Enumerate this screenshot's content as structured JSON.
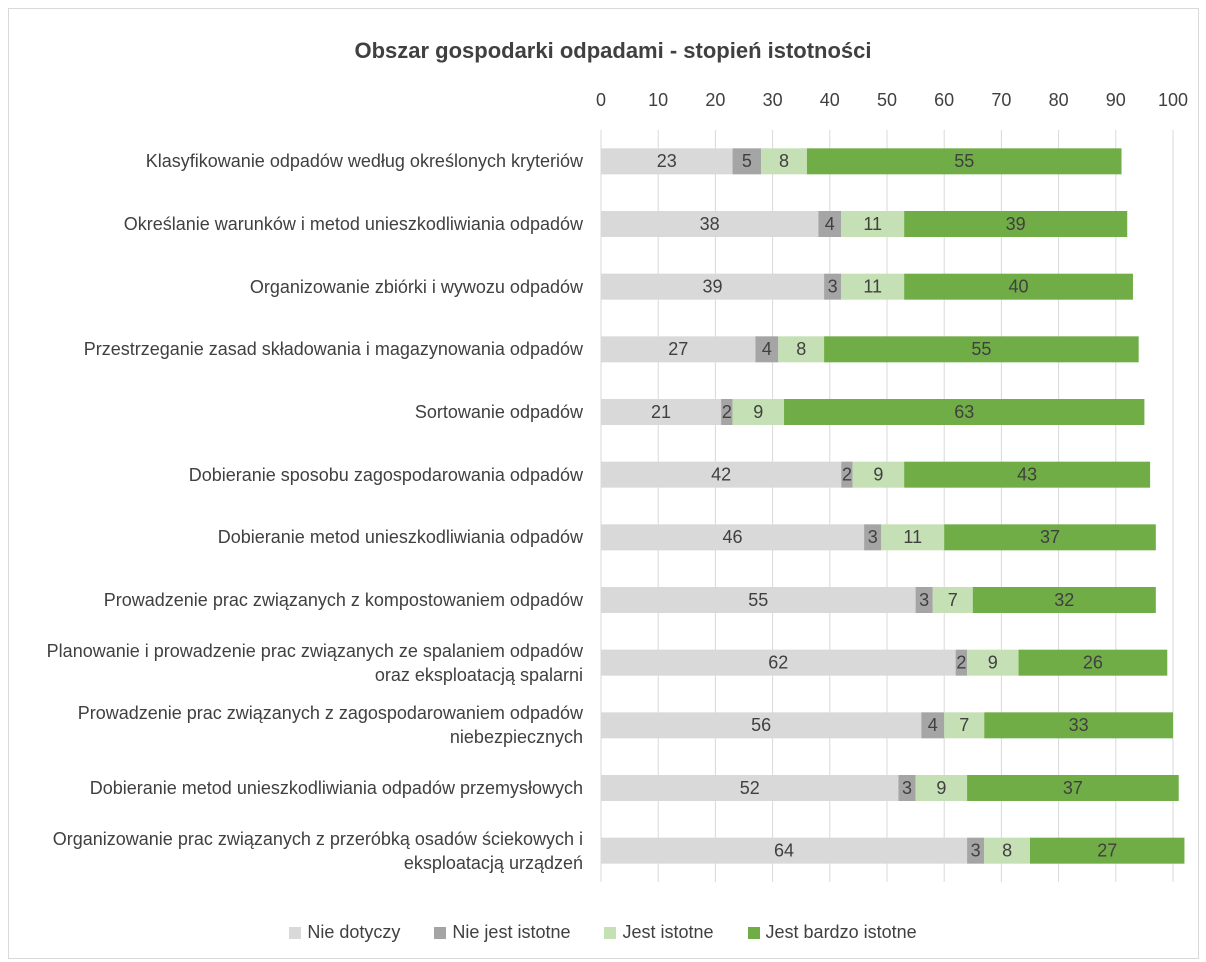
{
  "chart_data": {
    "type": "stacked-bar-horizontal",
    "title": "Obszar gospodarki odpadami - stopień istotności",
    "categories": [
      "Klasyfikowanie odpadów według określonych kryteriów",
      "Określanie warunków i metod unieszkodliwiania odpadów",
      "Organizowanie zbiórki i wywozu odpadów",
      "Przestrzeganie zasad składowania i magazynowania odpadów",
      "Sortowanie odpadów",
      "Dobieranie sposobu zagospodarowania odpadów",
      "Dobieranie metod unieszkodliwiania odpadów",
      "Prowadzenie prac związanych z kompostowaniem odpadów",
      "Planowanie i prowadzenie prac związanych ze spalaniem odpadów oraz eksploatacją spalarni",
      "Prowadzenie prac związanych z zagospodarowaniem odpadów niebezpiecznych",
      "Dobieranie metod unieszkodliwiania odpadów przemysłowych",
      "Organizowanie prac związanych z przeróbką osadów ściekowych i eksploatacją urządzeń"
    ],
    "series": [
      {
        "name": "Nie dotyczy",
        "color": "#d9d9d9",
        "values": [
          23,
          38,
          39,
          27,
          21,
          42,
          46,
          55,
          62,
          56,
          52,
          64
        ]
      },
      {
        "name": "Nie jest istotne",
        "color": "#a5a5a5",
        "values": [
          5,
          4,
          3,
          4,
          2,
          2,
          3,
          3,
          2,
          4,
          3,
          3
        ]
      },
      {
        "name": "Jest istotne",
        "color": "#c5e0b4",
        "values": [
          8,
          11,
          11,
          8,
          9,
          9,
          11,
          7,
          9,
          7,
          9,
          8
        ]
      },
      {
        "name": "Jest bardzo istotne",
        "color": "#70ad47",
        "values": [
          55,
          39,
          40,
          55,
          63,
          43,
          37,
          32,
          26,
          33,
          37,
          27
        ]
      }
    ],
    "xlim": [
      0,
      100
    ],
    "xticks": [
      0,
      10,
      20,
      30,
      40,
      50,
      60,
      70,
      80,
      90,
      100
    ],
    "grid": true,
    "legend": "bottom"
  }
}
